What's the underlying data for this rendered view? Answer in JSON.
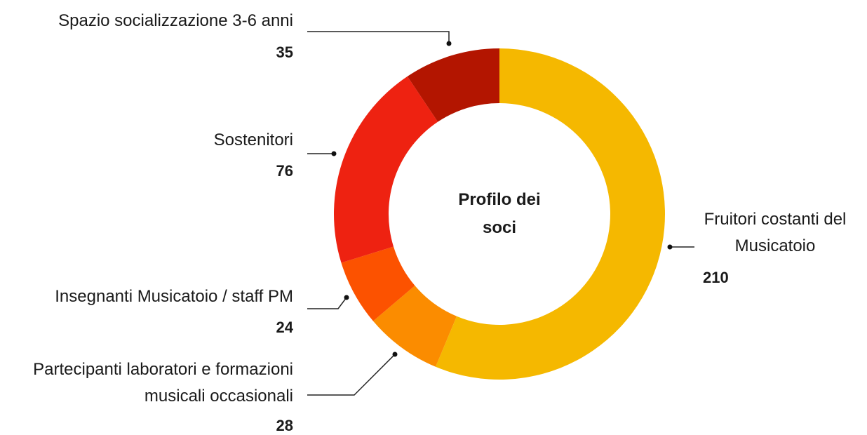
{
  "chart_data": {
    "type": "donut",
    "title": "Profilo dei soci",
    "categories": [
      "Fruitori costanti del Musicatoio",
      "Partecipanti laboratori e formazioni musicali occasionali",
      "Insegnanti Musicatoio / staff PM",
      "Sostenitori",
      "Spazio socializzazione 3-6 anni"
    ],
    "values": [
      210,
      28,
      24,
      76,
      35
    ],
    "colors": [
      "#f5b800",
      "#fb8c00",
      "#fc5200",
      "#ee2211",
      "#b31500"
    ]
  }
}
